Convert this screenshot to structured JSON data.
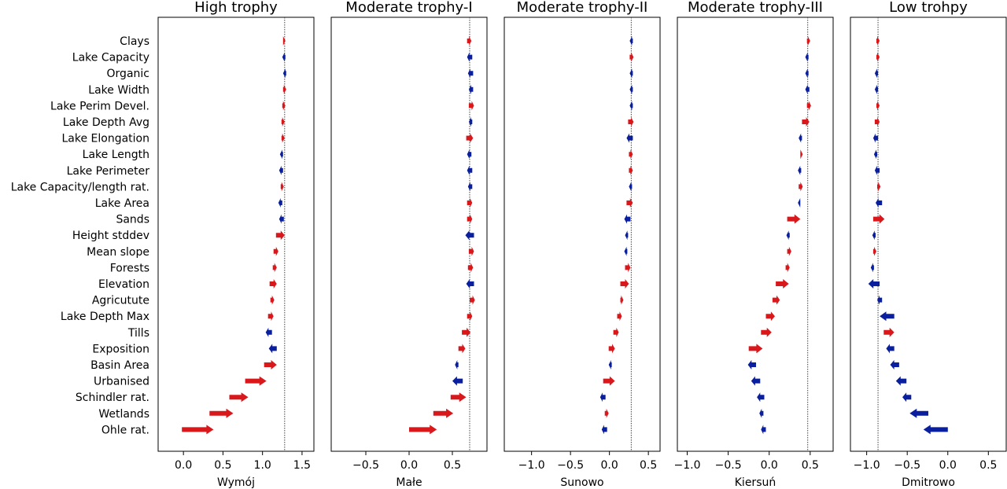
{
  "colors": {
    "positive": "#d9181c",
    "negative": "#0a1f9e",
    "axis": "#000000",
    "baseline": "#444444"
  },
  "chart_data": {
    "type": "waterfall-arrows",
    "features": [
      "Clays",
      "Lake Capacity ",
      "Organic",
      "Lake Width",
      "Lake Perim Devel.",
      "Lake Depth Avg",
      "Lake Elongation",
      "Lake Length",
      "Lake Perimeter",
      "Lake Capacity/length rat.",
      "Lake Area ",
      "Sands",
      "Height stddev",
      "Mean slope",
      "Forests",
      "Elevation",
      "Agricutute",
      "Lake Depth Max",
      "Tills",
      "Exposition",
      "Basin Area",
      "Urbanised",
      "Schindler rat.",
      "Wetlands",
      "Ohle rat."
    ],
    "panels": [
      {
        "title": "High trophy",
        "xlabel": "Wymój",
        "xlim": [
          -0.32,
          1.65
        ],
        "xticks": [
          0.0,
          0.5,
          1.0,
          1.5
        ],
        "baseline": 1.28,
        "arrows": [
          [
            1.26,
            1.29
          ],
          [
            1.29,
            1.25
          ],
          [
            1.3,
            1.26
          ],
          [
            1.26,
            1.3
          ],
          [
            1.25,
            1.29
          ],
          [
            1.24,
            1.28
          ],
          [
            1.24,
            1.28
          ],
          [
            1.26,
            1.22
          ],
          [
            1.26,
            1.21
          ],
          [
            1.23,
            1.27
          ],
          [
            1.25,
            1.2
          ],
          [
            1.27,
            1.21
          ],
          [
            1.17,
            1.28
          ],
          [
            1.14,
            1.2
          ],
          [
            1.13,
            1.18
          ],
          [
            1.09,
            1.18
          ],
          [
            1.1,
            1.15
          ],
          [
            1.07,
            1.14
          ],
          [
            1.12,
            1.04
          ],
          [
            1.18,
            1.08
          ],
          [
            1.02,
            1.18
          ],
          [
            0.78,
            1.05
          ],
          [
            0.58,
            0.82
          ],
          [
            0.33,
            0.63
          ],
          [
            -0.02,
            0.38
          ]
        ]
      },
      {
        "title": "Moderate trophy-I",
        "xlabel": "Małe",
        "xlim": [
          -0.9,
          0.9
        ],
        "xticks": [
          -0.5,
          0.0,
          0.5
        ],
        "baseline": 0.7,
        "arrows": [
          [
            0.67,
            0.72
          ],
          [
            0.73,
            0.67
          ],
          [
            0.74,
            0.68
          ],
          [
            0.74,
            0.69
          ],
          [
            0.69,
            0.75
          ],
          [
            0.73,
            0.69
          ],
          [
            0.66,
            0.74
          ],
          [
            0.72,
            0.67
          ],
          [
            0.73,
            0.67
          ],
          [
            0.73,
            0.68
          ],
          [
            0.67,
            0.73
          ],
          [
            0.67,
            0.73
          ],
          [
            0.75,
            0.65
          ],
          [
            0.69,
            0.75
          ],
          [
            0.68,
            0.74
          ],
          [
            0.75,
            0.66
          ],
          [
            0.7,
            0.76
          ],
          [
            0.67,
            0.73
          ],
          [
            0.61,
            0.71
          ],
          [
            0.57,
            0.65
          ],
          [
            0.57,
            0.53
          ],
          [
            0.62,
            0.5
          ],
          [
            0.48,
            0.66
          ],
          [
            0.28,
            0.51
          ],
          [
            0.0,
            0.32
          ]
        ]
      },
      {
        "title": "Moderate trophy-II",
        "xlabel": "Sunowo",
        "xlim": [
          -1.35,
          0.65
        ],
        "xticks": [
          -1.0,
          -0.5,
          0.0,
          0.5
        ],
        "baseline": 0.28,
        "arrows": [
          [
            0.3,
            0.26
          ],
          [
            0.26,
            0.31
          ],
          [
            0.3,
            0.26
          ],
          [
            0.3,
            0.26
          ],
          [
            0.3,
            0.26
          ],
          [
            0.24,
            0.31
          ],
          [
            0.3,
            0.22
          ],
          [
            0.25,
            0.3
          ],
          [
            0.25,
            0.3
          ],
          [
            0.29,
            0.25
          ],
          [
            0.22,
            0.3
          ],
          [
            0.27,
            0.19
          ],
          [
            0.24,
            0.2
          ],
          [
            0.23,
            0.19
          ],
          [
            0.2,
            0.27
          ],
          [
            0.14,
            0.25
          ],
          [
            0.14,
            0.18
          ],
          [
            0.1,
            0.16
          ],
          [
            0.05,
            0.12
          ],
          [
            -0.01,
            0.07
          ],
          [
            0.03,
            -0.01
          ],
          [
            -0.08,
            0.07
          ],
          [
            -0.05,
            -0.12
          ],
          [
            -0.06,
            -0.01
          ],
          [
            -0.03,
            -0.1
          ]
        ]
      },
      {
        "title": "Moderate trophy-III",
        "xlabel": "Kiersuń",
        "xlim": [
          -1.12,
          0.78
        ],
        "xticks": [
          -1.0,
          -0.5,
          0.0,
          0.5
        ],
        "baseline": 0.47,
        "arrows": [
          [
            0.46,
            0.5
          ],
          [
            0.48,
            0.44
          ],
          [
            0.48,
            0.44
          ],
          [
            0.49,
            0.44
          ],
          [
            0.46,
            0.51
          ],
          [
            0.4,
            0.49
          ],
          [
            0.4,
            0.36
          ],
          [
            0.38,
            0.41
          ],
          [
            0.39,
            0.35
          ],
          [
            0.36,
            0.41
          ],
          [
            0.38,
            0.35
          ],
          [
            0.22,
            0.38
          ],
          [
            0.25,
            0.21
          ],
          [
            0.22,
            0.27
          ],
          [
            0.2,
            0.25
          ],
          [
            0.08,
            0.24
          ],
          [
            0.04,
            0.13
          ],
          [
            -0.04,
            0.07
          ],
          [
            -0.1,
            0.03
          ],
          [
            -0.25,
            -0.08
          ],
          [
            -0.16,
            -0.26
          ],
          [
            -0.11,
            -0.22
          ],
          [
            -0.06,
            -0.15
          ],
          [
            -0.07,
            -0.12
          ],
          [
            -0.04,
            -0.1
          ]
        ]
      },
      {
        "title": "Low trohpy",
        "xlabel": "Dmitrowo",
        "xlim": [
          -1.2,
          0.72
        ],
        "xticks": [
          -1.0,
          -0.5,
          0.0,
          0.5
        ],
        "baseline": -0.86,
        "arrows": [
          [
            -0.88,
            -0.84
          ],
          [
            -0.88,
            -0.84
          ],
          [
            -0.86,
            -0.9
          ],
          [
            -0.86,
            -0.9
          ],
          [
            -0.88,
            -0.84
          ],
          [
            -0.9,
            -0.84
          ],
          [
            -0.86,
            -0.92
          ],
          [
            -0.87,
            -0.91
          ],
          [
            -0.84,
            -0.9
          ],
          [
            -0.87,
            -0.83
          ],
          [
            -0.81,
            -0.89
          ],
          [
            -0.92,
            -0.78
          ],
          [
            -0.89,
            -0.93
          ],
          [
            -0.92,
            -0.88
          ],
          [
            -0.91,
            -0.95
          ],
          [
            -0.84,
            -0.98
          ],
          [
            -0.81,
            -0.87
          ],
          [
            -0.66,
            -0.84
          ],
          [
            -0.79,
            -0.66
          ],
          [
            -0.66,
            -0.76
          ],
          [
            -0.6,
            -0.71
          ],
          [
            -0.51,
            -0.64
          ],
          [
            -0.45,
            -0.56
          ],
          [
            -0.24,
            -0.47
          ],
          [
            0.0,
            -0.3
          ]
        ]
      }
    ]
  }
}
